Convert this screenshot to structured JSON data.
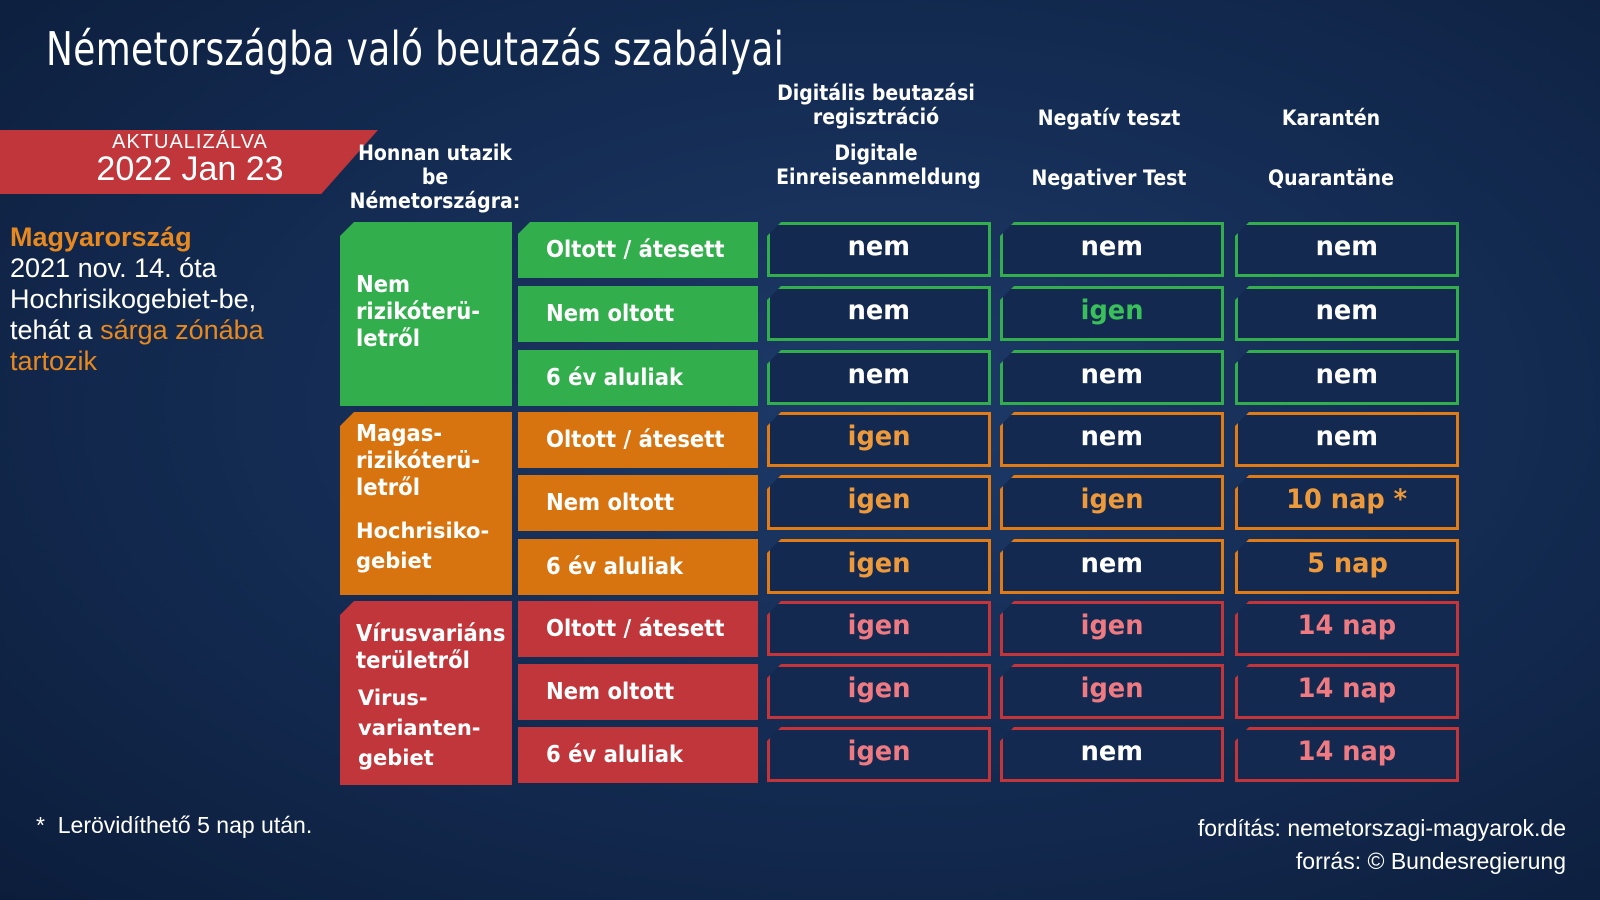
{
  "title": "Németországba való beutazás szabályai",
  "updated": {
    "label": "AKTUALIZÁLVA",
    "date": "2022 Jan 23"
  },
  "from_header": [
    "Honnan utazik",
    "be",
    "Németországra:"
  ],
  "columns": {
    "c1": {
      "hu": [
        "Digitális beutazási",
        "regisztráció"
      ],
      "de": [
        "Digitale",
        "Einreiseanmeldung"
      ]
    },
    "c2": {
      "hu": "Negatív teszt",
      "de": "Negativer Test"
    },
    "c3": {
      "hu": "Karantén",
      "de": "Quarantäne"
    }
  },
  "side": {
    "country": "Magyarország",
    "line1": "2021 nov. 14. óta",
    "line2": "Hochrisikogebiet-be,",
    "line3_prefix": "tehát a ",
    "line3_highlight": "sárga zónába",
    "line4": "tartozik"
  },
  "groups": [
    {
      "color": "green",
      "labels": [
        "Nem",
        "rizikóterü-",
        "letről"
      ],
      "de_labels": []
    },
    {
      "color": "orange",
      "labels": [
        "Magas-",
        "rizikóterü-",
        "letről"
      ],
      "de_labels": [
        "Hochrisiko-",
        "gebiet"
      ]
    },
    {
      "color": "red",
      "labels": [
        "Vírusvariáns",
        "területről"
      ],
      "de_labels": [
        "Virus-",
        "varianten-",
        "gebiet"
      ]
    }
  ],
  "rows": [
    {
      "label": "Oltott / átesett",
      "c1": "nem",
      "c2": "nem",
      "c3": "nem"
    },
    {
      "label": "Nem oltott",
      "c1": "nem",
      "c2": "igen",
      "c3": "nem"
    },
    {
      "label": "6 év aluliak",
      "c1": "nem",
      "c2": "nem",
      "c3": "nem"
    },
    {
      "label": "Oltott / átesett",
      "c1": "igen",
      "c2": "nem",
      "c3": "nem"
    },
    {
      "label": "Nem oltott",
      "c1": "igen",
      "c2": "igen",
      "c3": "10 nap *"
    },
    {
      "label": "6  év aluliak",
      "c1": "igen",
      "c2": "nem",
      "c3": "5 nap"
    },
    {
      "label": "Oltott / átesett",
      "c1": "igen",
      "c2": "igen",
      "c3": "14 nap"
    },
    {
      "label": "Nem oltott",
      "c1": "igen",
      "c2": "igen",
      "c3": "14 nap"
    },
    {
      "label": "6 év aluliak",
      "c1": "igen",
      "c2": "nem",
      "c3": "14 nap"
    }
  ],
  "footnote": {
    "marker": "*",
    "text": "Lerövidíthető 5 nap után."
  },
  "credits": {
    "translation": "fordítás: nemetorszagi-magyarok.de",
    "source": "forrás: © Bundesregierung"
  },
  "colors": {
    "green": "#33ae4d",
    "orange": "#e07b16",
    "red": "#c4353a",
    "background": "#132a50"
  }
}
